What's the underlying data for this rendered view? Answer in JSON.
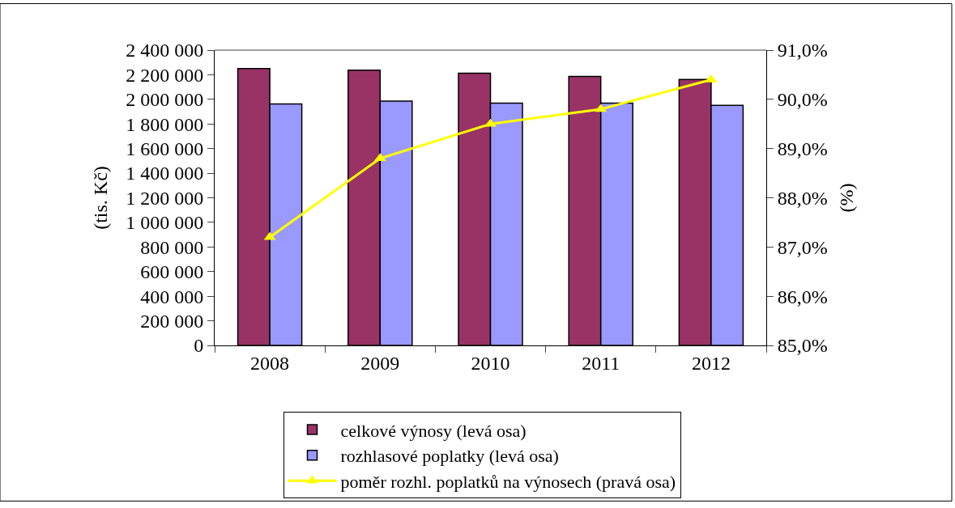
{
  "chart_data": {
    "type": "bar",
    "categories": [
      "2008",
      "2009",
      "2010",
      "2011",
      "2012"
    ],
    "series": [
      {
        "name": "celkové výnosy (levá osa)",
        "color": "#993366",
        "values": [
          2251000,
          2238000,
          2212000,
          2187000,
          2161000
        ]
      },
      {
        "name": "rozhlasové poplatky (levá osa)",
        "color": "#9999ff",
        "values": [
          1962000,
          1986000,
          1970000,
          1970000,
          1951000
        ]
      },
      {
        "name": "poměr rozhl. poplatků na výnosech (pravá osa)",
        "type": "line",
        "axis": "y2",
        "color": "#ffff00",
        "marker": "triangle",
        "values": [
          87.2,
          88.8,
          89.5,
          89.8,
          90.4
        ]
      }
    ],
    "ylabel": "(tis. Kč)",
    "y2label": "(%)",
    "ylim": [
      0,
      2400000
    ],
    "yticks": [
      {
        "value": 0,
        "label": "0"
      },
      {
        "value": 200000,
        "label": "200 000"
      },
      {
        "value": 400000,
        "label": "400 000"
      },
      {
        "value": 600000,
        "label": "600 000"
      },
      {
        "value": 800000,
        "label": "800 000"
      },
      {
        "value": 1000000,
        "label": "1 000 000"
      },
      {
        "value": 1200000,
        "label": "1 200 000"
      },
      {
        "value": 1400000,
        "label": "1 400 000"
      },
      {
        "value": 1600000,
        "label": "1 600 000"
      },
      {
        "value": 1800000,
        "label": "1 800 000"
      },
      {
        "value": 2000000,
        "label": "2 000 000"
      },
      {
        "value": 2200000,
        "label": "2 200 000"
      },
      {
        "value": 2400000,
        "label": "2 400 000"
      }
    ],
    "y2lim": [
      85,
      91
    ],
    "y2ticks": [
      {
        "value": 85,
        "label": "85,0%"
      },
      {
        "value": 86,
        "label": "86,0%"
      },
      {
        "value": 87,
        "label": "87,0%"
      },
      {
        "value": 88,
        "label": "88,0%"
      },
      {
        "value": 89,
        "label": "89,0%"
      },
      {
        "value": 90,
        "label": "90,0%"
      },
      {
        "value": 91,
        "label": "91,0%"
      }
    ],
    "legend": "bottom"
  }
}
